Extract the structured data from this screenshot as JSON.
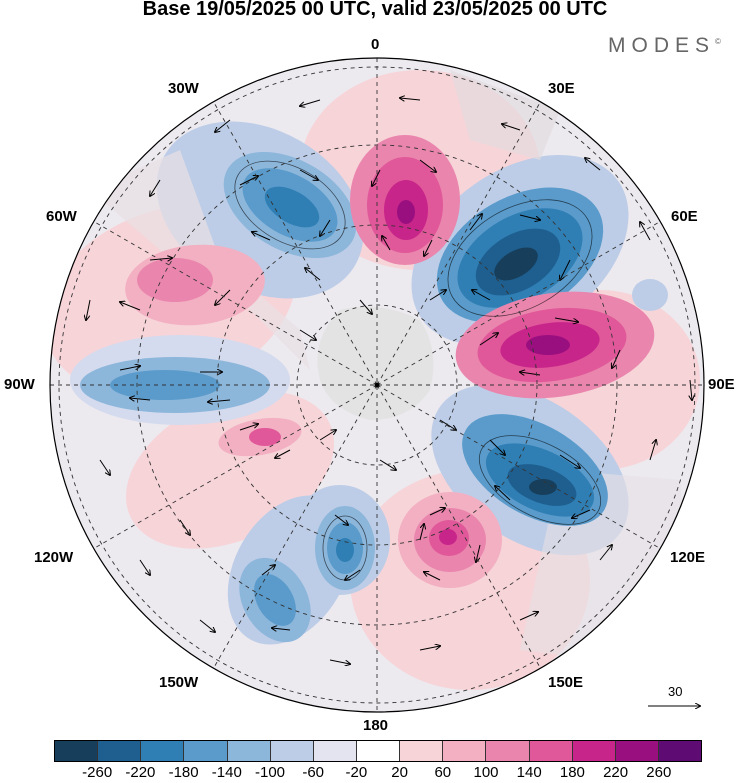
{
  "title": "Base 19/05/2025 00 UTC, valid 23/05/2025 00 UTC",
  "brand": "MODES",
  "brand_mark": "©",
  "longitude_labels": {
    "top": "0",
    "bottom": "180",
    "left": "90W",
    "right": "90E",
    "upper_left_1": "30W",
    "upper_left_2": "60W",
    "upper_right_1": "30E",
    "upper_right_2": "60E",
    "lower_left_1": "120W",
    "lower_left_2": "150W",
    "lower_right_1": "120E",
    "lower_right_2": "150E"
  },
  "reference_vector": {
    "label": "30"
  },
  "colorbar": {
    "colors": [
      "#173f5c",
      "#1f5f8f",
      "#2f7fb5",
      "#5a9bcb",
      "#8db6db",
      "#bdcde7",
      "#e4e4f1",
      "#ffffff",
      "#f7d4d8",
      "#f2b0c2",
      "#ea86ad",
      "#e05899",
      "#c8258b",
      "#9a0f7f",
      "#5e0b74"
    ],
    "labels": [
      "-260",
      "-220",
      "-180",
      "-140",
      "-100",
      "-60",
      "-20",
      "20",
      "60",
      "100",
      "140",
      "180",
      "220",
      "260"
    ]
  }
}
